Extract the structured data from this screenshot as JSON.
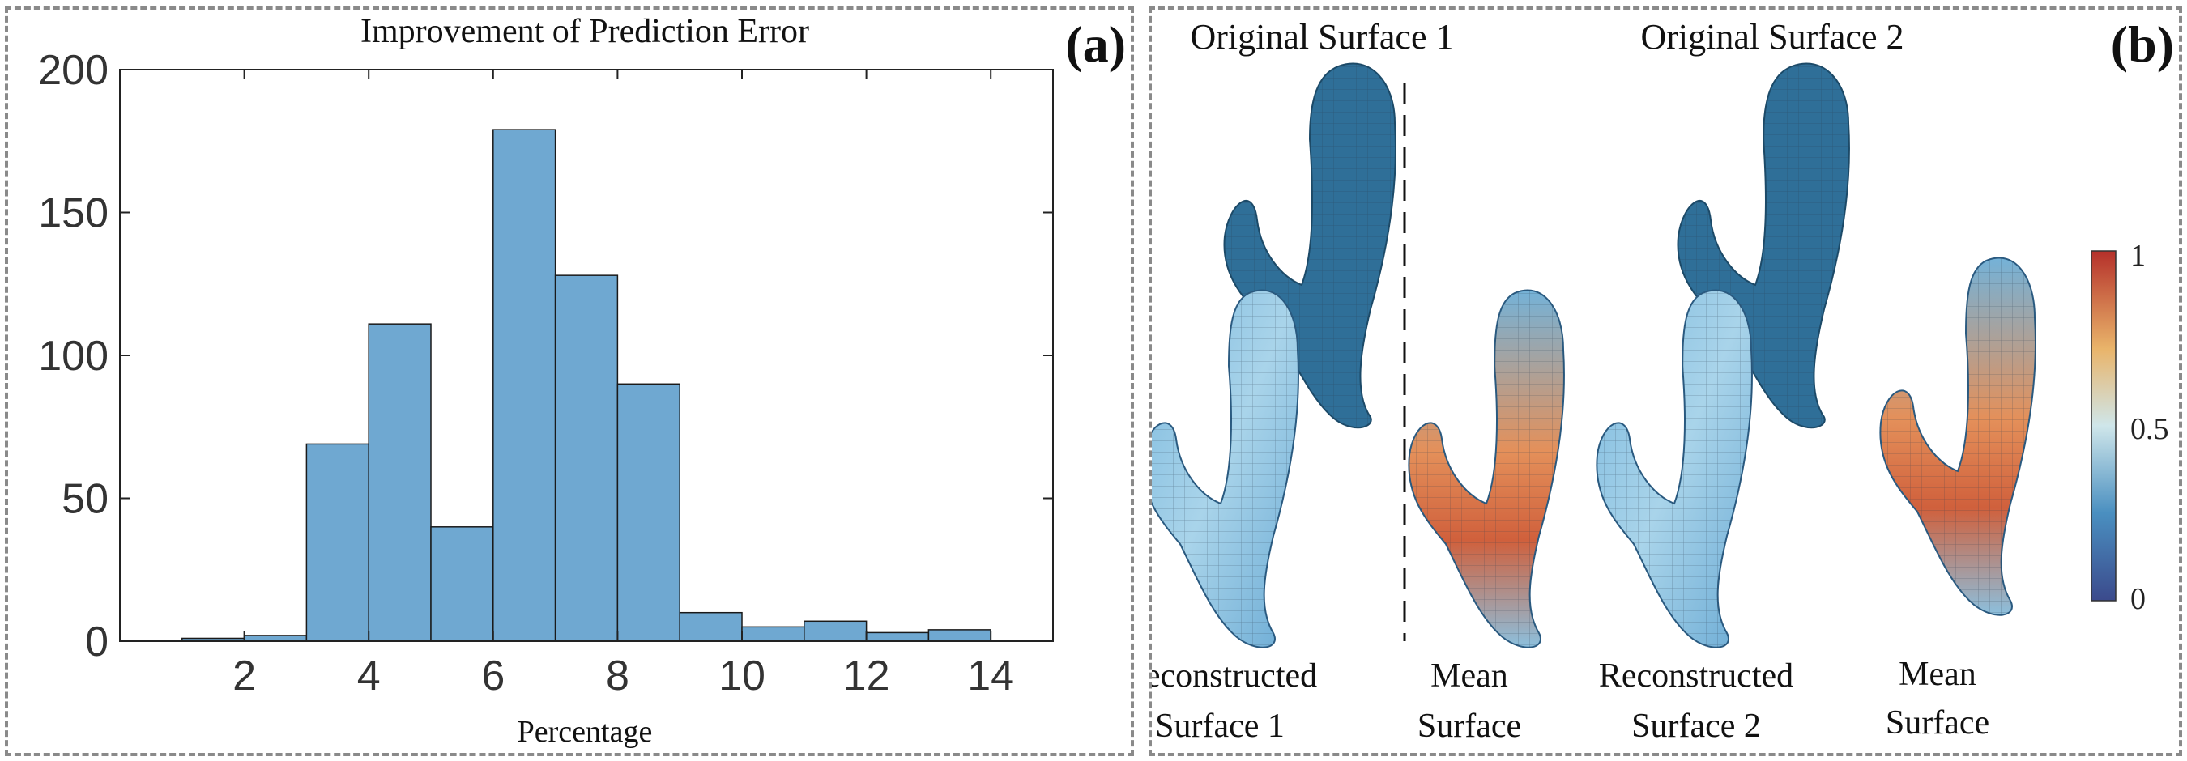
{
  "panel_a": {
    "label": "(a)",
    "chart_data": {
      "type": "bar",
      "title": "Improvement of Prediction Error",
      "xlabel": "Percentage",
      "ylabel": "",
      "xlim": [
        0,
        15
      ],
      "ylim": [
        0,
        200
      ],
      "xticks": [
        2,
        4,
        6,
        8,
        10,
        12,
        14
      ],
      "yticks": [
        0,
        50,
        100,
        150,
        200
      ],
      "bin_edges": [
        1,
        2,
        3,
        4,
        5,
        6,
        7,
        8,
        9,
        10,
        11,
        12,
        13,
        14
      ],
      "values": [
        1,
        2,
        69,
        111,
        40,
        179,
        128,
        90,
        10,
        5,
        7,
        3,
        4
      ],
      "grid": false,
      "colors": {
        "bar_fill": "#6fa8d1",
        "bar_edge": "#1a1a1a"
      }
    }
  },
  "panel_b": {
    "label": "(b)",
    "headings": [
      "Original Surface 1",
      "Original Surface 2"
    ],
    "captions": [
      [
        "Reconstructed",
        "Surface 1"
      ],
      [
        "Mean",
        "Surface"
      ],
      [
        "Reconstructed",
        "Surface 2"
      ],
      [
        "Mean",
        "Surface"
      ]
    ],
    "colorbar": {
      "max_label": "1",
      "mid_label": "0.5",
      "min_label": "0"
    }
  }
}
